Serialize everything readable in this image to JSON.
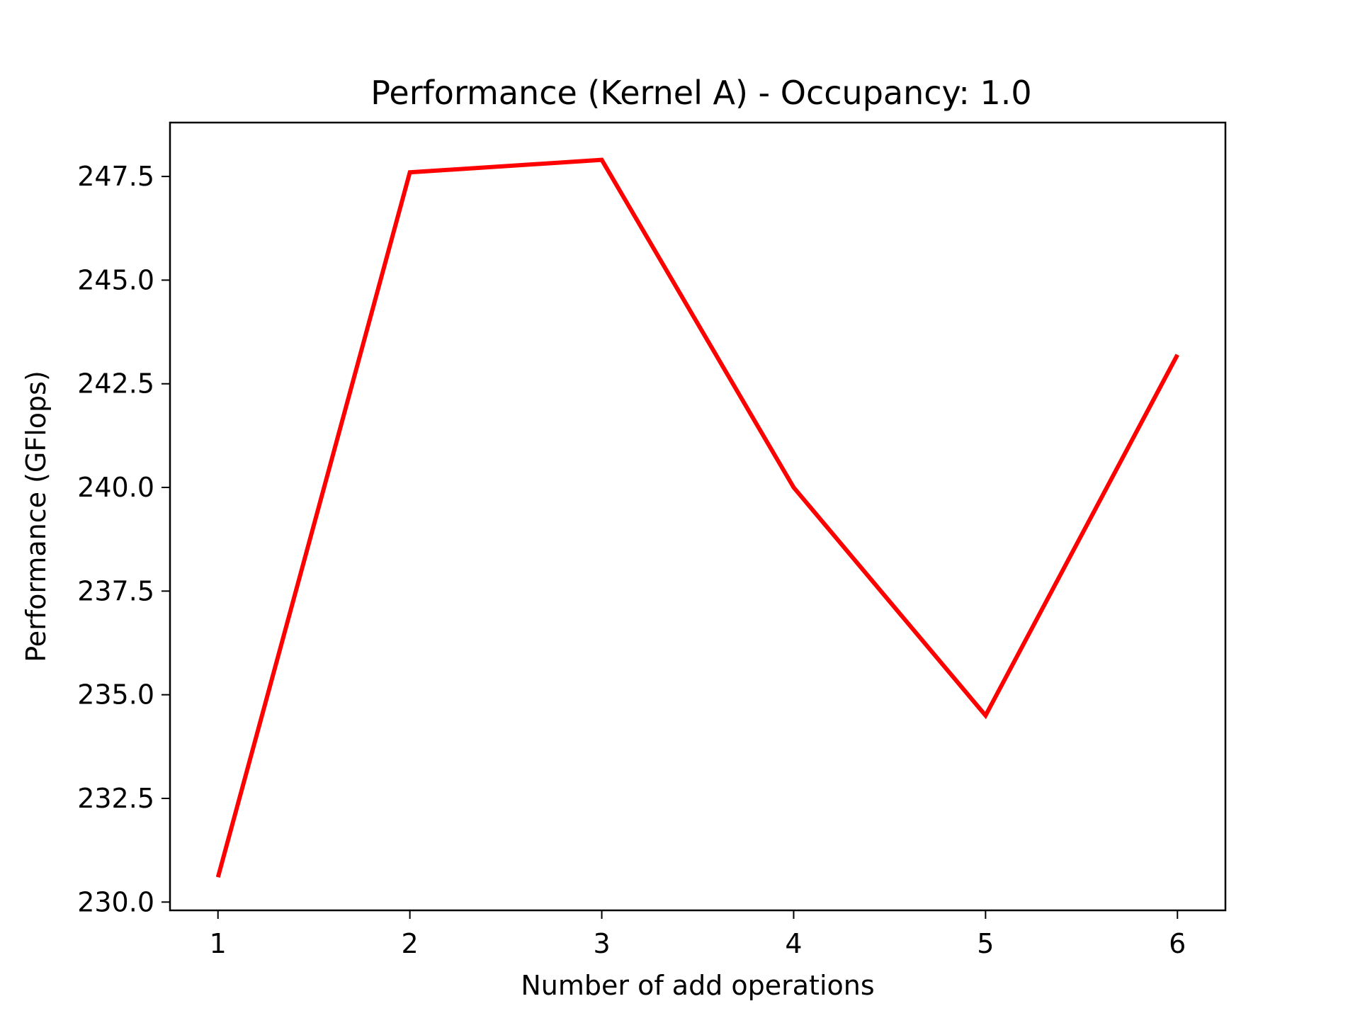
{
  "chart_data": {
    "type": "line",
    "title": "Performance (Kernel A) - Occupancy:  1.0",
    "xlabel": "Number of add operations",
    "ylabel": "Performance (GFlops)",
    "x": [
      1,
      2,
      3,
      4,
      5,
      6
    ],
    "xticks": [
      "1",
      "2",
      "3",
      "4",
      "5",
      "6"
    ],
    "xlim": [
      0.75,
      6.25
    ],
    "ylim": [
      229.8,
      248.8
    ],
    "yticks": [
      230.0,
      232.5,
      235.0,
      237.5,
      240.0,
      242.5,
      245.0,
      247.5
    ],
    "ytick_labels": [
      "230.0",
      "232.5",
      "235.0",
      "237.5",
      "240.0",
      "242.5",
      "245.0",
      "247.5"
    ],
    "series": [
      {
        "values": [
          230.6,
          247.6,
          247.9,
          240.0,
          234.5,
          243.2
        ],
        "color": "#ff0000"
      }
    ],
    "grid": false,
    "legend": "none"
  }
}
